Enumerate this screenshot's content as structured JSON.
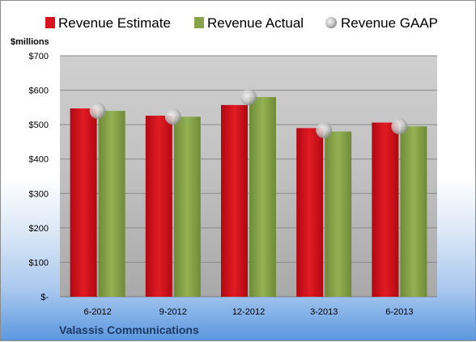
{
  "chart_data": {
    "type": "bar",
    "unit_label": "$millions",
    "company": "Valassis Communications",
    "categories": [
      "6-2012",
      "9-2012",
      "12-2012",
      "3-2013",
      "6-2013"
    ],
    "series": [
      {
        "name": "Revenue Estimate",
        "type": "bar",
        "color": "#d9141e",
        "values": [
          547,
          526,
          557,
          490,
          506
        ]
      },
      {
        "name": "Revenue Actual",
        "type": "bar",
        "color": "#87a548",
        "values": [
          540,
          523,
          580,
          480,
          495
        ]
      },
      {
        "name": "Revenue GAAP",
        "type": "marker",
        "color": "#c8c8c8",
        "values": [
          540,
          523,
          580,
          484,
          495
        ]
      }
    ],
    "yticks": [
      0,
      100,
      200,
      300,
      400,
      500,
      600,
      700
    ],
    "ytick_labels": [
      "$-",
      "$100",
      "$200",
      "$300",
      "$400",
      "$500",
      "$600",
      "$700"
    ],
    "ylim": [
      0,
      700
    ],
    "grid": true,
    "legend_position": "top"
  }
}
